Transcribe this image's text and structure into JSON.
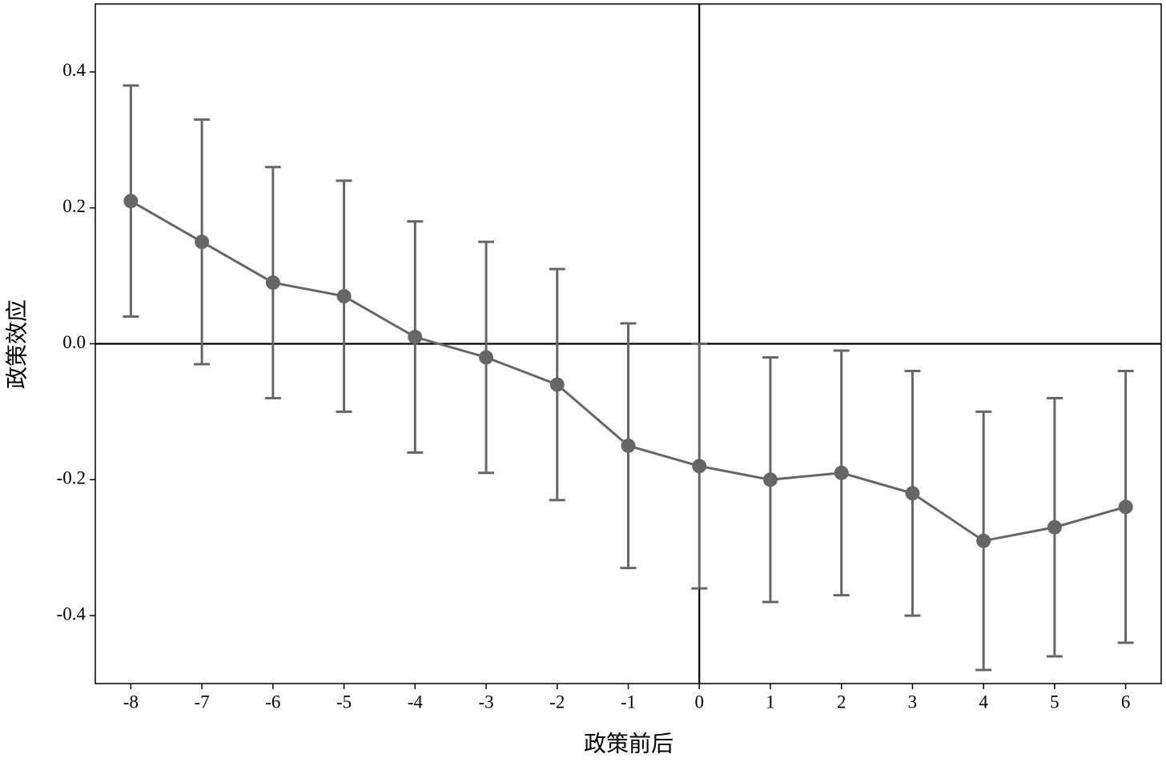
{
  "chart_data": {
    "type": "errorbar-line",
    "x_label": "政策前后",
    "y_label": "政策效应",
    "x": [
      -8,
      -7,
      -6,
      -5,
      -4,
      -3,
      -2,
      -1,
      0,
      1,
      2,
      3,
      4,
      5,
      6
    ],
    "series": [
      {
        "color": "#666666",
        "values": [
          0.21,
          0.15,
          0.09,
          0.07,
          0.01,
          -0.02,
          -0.06,
          -0.15,
          -0.18,
          -0.2,
          -0.19,
          -0.22,
          -0.29,
          -0.27,
          -0.24
        ],
        "lower": [
          0.04,
          -0.03,
          -0.08,
          -0.1,
          -0.16,
          -0.19,
          -0.23,
          -0.33,
          -0.36,
          -0.38,
          -0.37,
          -0.4,
          -0.48,
          -0.46,
          -0.44
        ],
        "upper": [
          0.38,
          0.33,
          0.26,
          0.24,
          0.18,
          0.15,
          0.11,
          0.03,
          0.0,
          -0.02,
          -0.01,
          -0.04,
          -0.1,
          -0.08,
          -0.04
        ]
      }
    ],
    "xlim": [
      -8.5,
      6.5
    ],
    "ylim": [
      -0.5,
      0.5
    ],
    "xticks": [
      -8,
      -7,
      -6,
      -5,
      -4,
      -3,
      -2,
      -1,
      0,
      1,
      2,
      3,
      4,
      5,
      6
    ],
    "yticks": [
      -0.4,
      -0.2,
      {
        "value": 0,
        "label": "0.0"
      },
      0.2,
      0.4
    ],
    "reference_lines": {
      "x": 0,
      "y": 0
    }
  }
}
